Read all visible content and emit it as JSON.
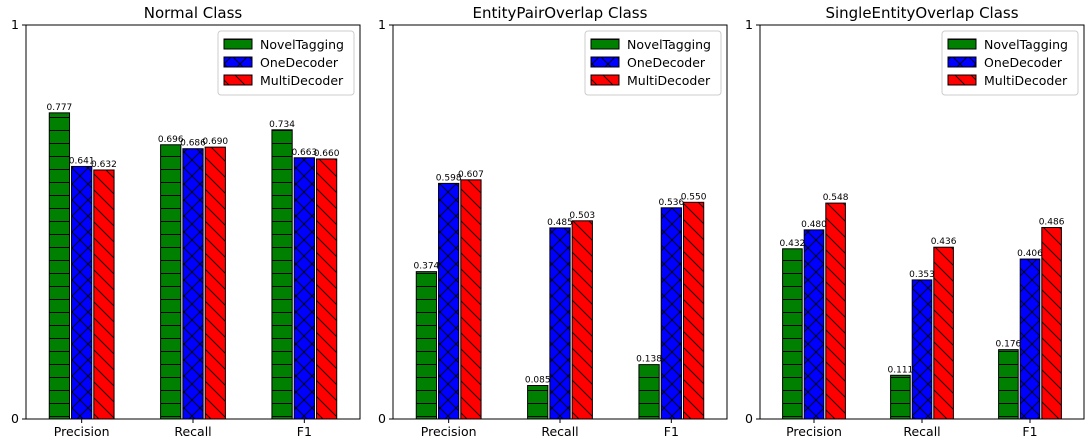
{
  "chart_data": [
    {
      "type": "bar",
      "title": "Normal Class",
      "categories": [
        "Precision",
        "Recall",
        "F1"
      ],
      "series": [
        {
          "name": "NovelTagging",
          "values": [
            0.777,
            0.696,
            0.734
          ],
          "labels": [
            "0.777",
            "0.696",
            "0.734"
          ]
        },
        {
          "name": "OneDecoder",
          "values": [
            0.641,
            0.686,
            0.663
          ],
          "labels": [
            "0.641",
            "0.686",
            "0.663"
          ]
        },
        {
          "name": "MultiDecoder",
          "values": [
            0.632,
            0.69,
            0.66
          ],
          "labels": [
            "0.632",
            "0.690",
            "0.660"
          ]
        }
      ],
      "ylim": [
        0,
        1
      ],
      "yticks": [
        "0",
        "1"
      ],
      "legend": "top-right"
    },
    {
      "type": "bar",
      "title": "EntityPairOverlap Class",
      "categories": [
        "Precision",
        "Recall",
        "F1"
      ],
      "series": [
        {
          "name": "NovelTagging",
          "values": [
            0.374,
            0.085,
            0.138
          ],
          "labels": [
            "0.374",
            "0.085",
            "0.138"
          ]
        },
        {
          "name": "OneDecoder",
          "values": [
            0.598,
            0.485,
            0.536
          ],
          "labels": [
            "0.598",
            "0.485",
            "0.536"
          ]
        },
        {
          "name": "MultiDecoder",
          "values": [
            0.607,
            0.503,
            0.55
          ],
          "labels": [
            "0.607",
            "0.503",
            "0.550"
          ]
        }
      ],
      "ylim": [
        0,
        1
      ],
      "yticks": [
        "0",
        "1"
      ],
      "legend": "top-right"
    },
    {
      "type": "bar",
      "title": "SingleEntityOverlap Class",
      "categories": [
        "Precision",
        "Recall",
        "F1"
      ],
      "series": [
        {
          "name": "NovelTagging",
          "values": [
            0.432,
            0.111,
            0.176
          ],
          "labels": [
            "0.432",
            "0.111",
            "0.176"
          ]
        },
        {
          "name": "OneDecoder",
          "values": [
            0.48,
            0.353,
            0.406
          ],
          "labels": [
            "0.480",
            "0.353",
            "0.406"
          ]
        },
        {
          "name": "MultiDecoder",
          "values": [
            0.548,
            0.436,
            0.486
          ],
          "labels": [
            "0.548",
            "0.436",
            "0.486"
          ]
        }
      ],
      "ylim": [
        0,
        1
      ],
      "yticks": [
        "0",
        "1"
      ],
      "legend": "top-right"
    }
  ],
  "styles": {
    "series_colors": [
      "#008000",
      "#0000ff",
      "#ff0000"
    ],
    "series_hatch": [
      "horizontal",
      "cross",
      "backslash"
    ],
    "edge_color": "#000000"
  }
}
